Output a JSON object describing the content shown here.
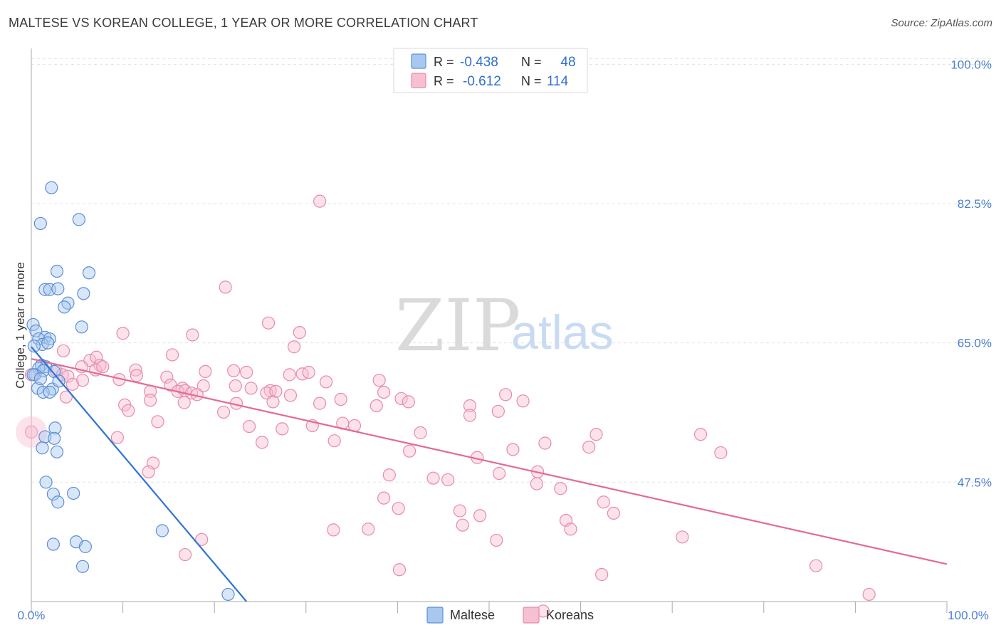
{
  "title": "MALTESE VS KOREAN COLLEGE, 1 YEAR OR MORE CORRELATION CHART",
  "source": "Source: ZipAtlas.com",
  "watermark": {
    "zip": "ZIP",
    "atlas": "atlas"
  },
  "legend": {
    "r_label": "R =",
    "n_label": "N =",
    "maltese": {
      "r": "-0.438",
      "n": "48"
    },
    "koreans": {
      "r": "-0.612",
      "n": "114"
    }
  },
  "colors": {
    "maltese_fill": "#a9c8f0",
    "maltese_stroke": "#5b8fd6",
    "maltese_line": "#2f73d6",
    "koreans_fill": "#f6bfd2",
    "koreans_stroke": "#e88aab",
    "koreans_line": "#e46a96",
    "grid": "#e3e3e3",
    "tick_label": "#4a7fd0"
  },
  "chart_data": {
    "type": "scatter",
    "title": "MALTESE VS KOREAN COLLEGE, 1 YEAR OR MORE CORRELATION CHART",
    "xlabel": "",
    "ylabel": "College, 1 year or more",
    "xlim": [
      0,
      100
    ],
    "ylim": [
      32.5,
      102
    ],
    "x_tick_labels": [
      "0.0%",
      "100.0%"
    ],
    "y_ticks": [
      47.5,
      65.0,
      82.5,
      100.0
    ],
    "y_tick_labels": [
      "47.5%",
      "65.0%",
      "82.5%",
      "100.0%"
    ],
    "grid": true,
    "legend_bottom": [
      "Maltese",
      "Koreans"
    ],
    "series": [
      {
        "name": "Maltese",
        "r": -0.438,
        "n": 48,
        "trend": {
          "x0": 0.0,
          "y0": 64.5,
          "x1": 23.5,
          "y1": 32.5
        },
        "points": [
          [
            2.2,
            84.5
          ],
          [
            1.0,
            80.0
          ],
          [
            5.2,
            80.5
          ],
          [
            2.8,
            74.0
          ],
          [
            6.3,
            73.8
          ],
          [
            1.5,
            71.7
          ],
          [
            2.0,
            71.7
          ],
          [
            2.9,
            71.8
          ],
          [
            5.7,
            71.2
          ],
          [
            4.0,
            70.0
          ],
          [
            3.6,
            69.5
          ],
          [
            0.2,
            67.3
          ],
          [
            5.5,
            67.0
          ],
          [
            0.5,
            66.5
          ],
          [
            1.5,
            65.7
          ],
          [
            2.0,
            65.5
          ],
          [
            0.8,
            65.5
          ],
          [
            1.2,
            64.8
          ],
          [
            1.8,
            65.0
          ],
          [
            0.3,
            64.6
          ],
          [
            1.1,
            62.2
          ],
          [
            1.6,
            62.0
          ],
          [
            0.8,
            61.8
          ],
          [
            1.3,
            61.5
          ],
          [
            2.5,
            61.4
          ],
          [
            0.4,
            61.0
          ],
          [
            0.7,
            59.3
          ],
          [
            2.3,
            59.2
          ],
          [
            1.3,
            58.8
          ],
          [
            2.0,
            58.8
          ],
          [
            2.6,
            54.3
          ],
          [
            1.5,
            53.2
          ],
          [
            2.5,
            53.0
          ],
          [
            1.2,
            51.8
          ],
          [
            2.8,
            51.3
          ],
          [
            1.6,
            47.5
          ],
          [
            4.6,
            46.1
          ],
          [
            2.4,
            46.0
          ],
          [
            2.9,
            45.0
          ],
          [
            14.3,
            41.4
          ],
          [
            2.4,
            39.7
          ],
          [
            4.9,
            40.0
          ],
          [
            5.9,
            39.4
          ],
          [
            5.6,
            36.9
          ],
          [
            21.5,
            33.4
          ],
          [
            0.2,
            61.0
          ],
          [
            1.0,
            60.5
          ],
          [
            3.0,
            60.2
          ]
        ]
      },
      {
        "name": "Koreans",
        "r": -0.612,
        "n": 114,
        "trend": {
          "x0": 0.0,
          "y0": 63.0,
          "x1": 100.0,
          "y1": 37.2
        },
        "points": [
          [
            31.5,
            82.8
          ],
          [
            21.2,
            72.0
          ],
          [
            25.9,
            67.5
          ],
          [
            10.0,
            66.2
          ],
          [
            17.6,
            66.0
          ],
          [
            29.3,
            66.3
          ],
          [
            3.5,
            64.0
          ],
          [
            15.4,
            63.5
          ],
          [
            28.7,
            64.5
          ],
          [
            6.4,
            62.8
          ],
          [
            7.1,
            63.2
          ],
          [
            7.5,
            62.2
          ],
          [
            5.5,
            62.0
          ],
          [
            2.7,
            61.5
          ],
          [
            3.4,
            61.0
          ],
          [
            4.0,
            60.8
          ],
          [
            7.0,
            61.6
          ],
          [
            7.8,
            62.0
          ],
          [
            11.4,
            61.6
          ],
          [
            19.0,
            61.4
          ],
          [
            22.1,
            61.5
          ],
          [
            23.5,
            61.3
          ],
          [
            29.6,
            61.1
          ],
          [
            30.3,
            61.3
          ],
          [
            28.2,
            61.0
          ],
          [
            9.6,
            60.4
          ],
          [
            11.5,
            60.9
          ],
          [
            14.8,
            60.7
          ],
          [
            5.6,
            60.3
          ],
          [
            4.5,
            59.8
          ],
          [
            15.2,
            59.7
          ],
          [
            16.5,
            59.3
          ],
          [
            18.8,
            59.6
          ],
          [
            22.3,
            59.6
          ],
          [
            24.0,
            59.3
          ],
          [
            32.2,
            60.1
          ],
          [
            38.0,
            60.3
          ],
          [
            13.0,
            58.9
          ],
          [
            16.0,
            58.9
          ],
          [
            16.8,
            59.0
          ],
          [
            17.5,
            58.7
          ],
          [
            18.1,
            58.5
          ],
          [
            26.1,
            59.0
          ],
          [
            25.7,
            58.7
          ],
          [
            26.7,
            58.9
          ],
          [
            28.3,
            58.4
          ],
          [
            38.5,
            58.8
          ],
          [
            40.4,
            58.0
          ],
          [
            51.8,
            58.5
          ],
          [
            3.8,
            58.2
          ],
          [
            13.0,
            57.8
          ],
          [
            16.7,
            57.5
          ],
          [
            21.0,
            56.3
          ],
          [
            22.4,
            57.4
          ],
          [
            26.4,
            57.6
          ],
          [
            31.5,
            57.4
          ],
          [
            33.8,
            57.9
          ],
          [
            37.7,
            57.1
          ],
          [
            41.2,
            57.6
          ],
          [
            53.7,
            57.7
          ],
          [
            47.9,
            57.1
          ],
          [
            10.2,
            57.2
          ],
          [
            10.6,
            56.5
          ],
          [
            13.8,
            55.1
          ],
          [
            47.9,
            55.9
          ],
          [
            51.0,
            56.4
          ],
          [
            23.8,
            54.5
          ],
          [
            27.4,
            54.2
          ],
          [
            30.7,
            54.6
          ],
          [
            34.0,
            54.9
          ],
          [
            35.3,
            54.6
          ],
          [
            42.5,
            53.7
          ],
          [
            56.1,
            52.4
          ],
          [
            61.7,
            53.5
          ],
          [
            73.1,
            53.5
          ],
          [
            25.2,
            52.5
          ],
          [
            33.1,
            52.7
          ],
          [
            9.4,
            53.1
          ],
          [
            41.3,
            51.4
          ],
          [
            52.6,
            51.6
          ],
          [
            60.9,
            51.9
          ],
          [
            75.3,
            51.2
          ],
          [
            13.3,
            49.9
          ],
          [
            48.7,
            50.6
          ],
          [
            39.1,
            48.4
          ],
          [
            12.8,
            48.8
          ],
          [
            43.9,
            48.0
          ],
          [
            45.5,
            47.8
          ],
          [
            51.1,
            48.6
          ],
          [
            55.3,
            48.8
          ],
          [
            57.8,
            46.7
          ],
          [
            55.2,
            47.3
          ],
          [
            38.5,
            45.5
          ],
          [
            62.5,
            45.0
          ],
          [
            40.1,
            44.2
          ],
          [
            46.8,
            43.9
          ],
          [
            49.0,
            43.3
          ],
          [
            63.6,
            43.6
          ],
          [
            58.4,
            42.7
          ],
          [
            47.1,
            42.1
          ],
          [
            58.9,
            41.6
          ],
          [
            33.0,
            41.5
          ],
          [
            36.8,
            41.6
          ],
          [
            71.1,
            40.6
          ],
          [
            18.6,
            40.3
          ],
          [
            50.8,
            40.2
          ],
          [
            16.8,
            38.4
          ],
          [
            40.2,
            36.5
          ],
          [
            85.7,
            37.0
          ],
          [
            62.3,
            35.9
          ],
          [
            91.5,
            33.4
          ],
          [
            55.9,
            31.3
          ],
          [
            0.0,
            53.8
          ],
          [
            0.0,
            61.0
          ]
        ]
      }
    ]
  }
}
